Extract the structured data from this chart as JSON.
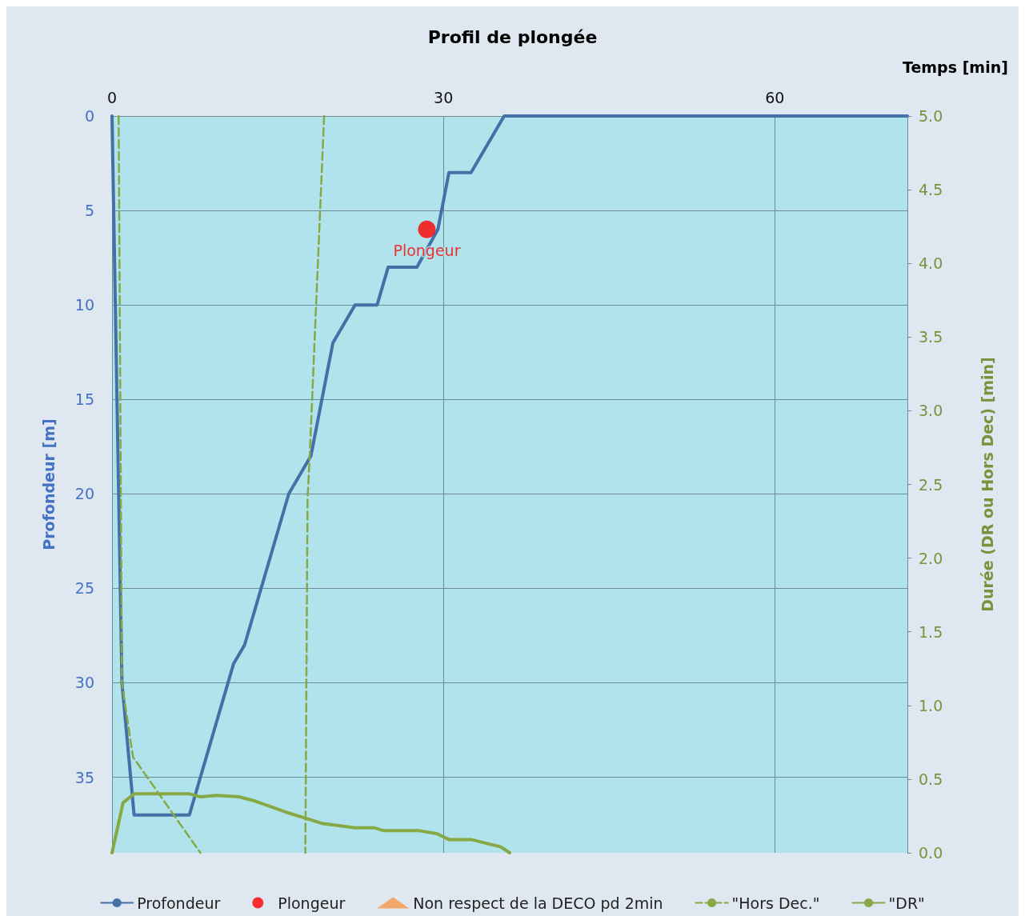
{
  "chart_data": {
    "type": "line",
    "title": "Profil de plongée",
    "xlabel": "Temps [min]",
    "ylabel": "Profondeur [m]",
    "y2label": "Durée (DR ou Hors Dec) [min]",
    "xlim": [
      0,
      72
    ],
    "xticks": [
      0,
      30,
      60
    ],
    "ylim": [
      39,
      0
    ],
    "yticks": [
      0,
      5,
      10,
      15,
      20,
      25,
      30,
      35
    ],
    "y2lim": [
      0,
      5
    ],
    "y2ticks": [
      {
        "value": 0,
        "label": "0.0"
      },
      {
        "value": 0.5,
        "label": "0.5"
      },
      {
        "value": 1,
        "label": "1.0"
      },
      {
        "value": 1.5,
        "label": "1.5"
      },
      {
        "value": 2,
        "label": "2.0"
      },
      {
        "value": 2.5,
        "label": "2.5"
      },
      {
        "value": 3,
        "label": "3.0"
      },
      {
        "value": 3.5,
        "label": "3.5"
      },
      {
        "value": 4,
        "label": "4.0"
      },
      {
        "value": 4.5,
        "label": "4.5"
      },
      {
        "value": 5,
        "label": "5.0"
      }
    ],
    "grid": true,
    "legend": "bottom",
    "series": [
      {
        "name": "Profondeur",
        "color": "#4470a8",
        "marker": "none",
        "line_style": "solid",
        "x": [
          0,
          0.9,
          2,
          7,
          11,
          12,
          16,
          18,
          20,
          22,
          24,
          25,
          27.6,
          29.5,
          30.5,
          32.5,
          35.5,
          72
        ],
        "values": [
          0,
          30,
          37,
          37,
          29,
          28,
          20,
          18,
          12,
          10,
          10,
          8,
          8,
          6,
          3,
          3,
          0,
          0
        ]
      },
      {
        "name": "Plongeur",
        "type": "scatter",
        "color": "#ff0000",
        "marker": "circle",
        "x": [
          28.5
        ],
        "values": [
          6
        ]
      },
      {
        "name": "Non respect de la DECO pd 2min",
        "type": "scatter",
        "color": "#f79646",
        "marker": "triangle"
      },
      {
        "name": "\"Hors Dec.\"",
        "axis": "y2",
        "color": "#86a845",
        "marker": "none",
        "line_style": "dashed",
        "x": [
          0.6,
          0.9,
          1.9,
          8,
          null,
          19.2,
          17.9,
          17.7,
          17.5
        ],
        "values": [
          5,
          1.15,
          0.65,
          0,
          null,
          5,
          2.7,
          2.4,
          0
        ]
      },
      {
        "name": "\"DR\"",
        "axis": "y2",
        "color": "#86a845",
        "marker": "none",
        "line_style": "solid",
        "x": [
          0,
          1,
          2,
          7,
          8,
          9.5,
          11.5,
          13,
          16,
          19,
          22,
          23.7,
          24.6,
          27.8,
          29.4,
          30.5,
          32.5,
          35.2,
          36
        ],
        "values": [
          0,
          0.34,
          0.4,
          0.4,
          0.38,
          0.39,
          0.38,
          0.35,
          0.27,
          0.2,
          0.17,
          0.17,
          0.15,
          0.15,
          0.13,
          0.09,
          0.09,
          0.04,
          0
        ]
      }
    ]
  }
}
